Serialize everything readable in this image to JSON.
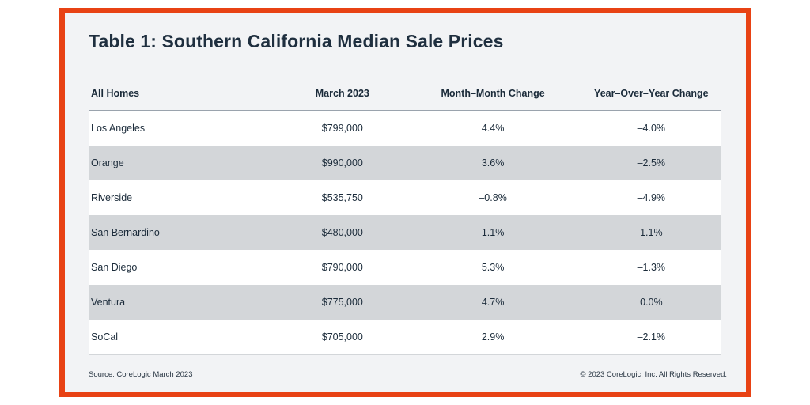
{
  "title": "Table 1: Southern California Median Sale Prices",
  "table": {
    "headers": [
      "All Homes",
      "March 2023",
      "Month–Month Change",
      "Year–Over–Year Change"
    ],
    "rows": [
      [
        "Los Angeles",
        "$799,000",
        "4.4%",
        "–4.0%"
      ],
      [
        "Orange",
        "$990,000",
        "3.6%",
        "–2.5%"
      ],
      [
        "Riverside",
        "$535,750",
        "–0.8%",
        "–4.9%"
      ],
      [
        "San Bernardino",
        "$480,000",
        "1.1%",
        "1.1%"
      ],
      [
        "San Diego",
        "$790,000",
        "5.3%",
        "–1.3%"
      ],
      [
        "Ventura",
        "$775,000",
        "4.7%",
        "0.0%"
      ],
      [
        "SoCal",
        "$705,000",
        "2.9%",
        "–2.1%"
      ]
    ]
  },
  "footer": {
    "source": "Source: CoreLogic March 2023",
    "copyright": "© 2023 CoreLogic, Inc. All Rights Reserved."
  },
  "colors": {
    "border": "#e84214",
    "background": "#f2f3f5",
    "stripe": "#d3d6d9",
    "text": "#1b2b3a"
  }
}
